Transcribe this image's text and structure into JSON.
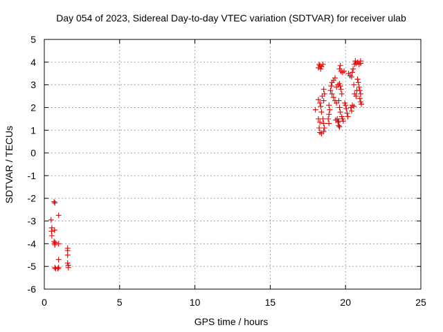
{
  "chart_data": {
    "type": "scatter",
    "title": "Day 054 of 2023, Sidereal Day-to-day VTEC variation (SDTVAR) for receiver ulab",
    "xlabel": "GPS time / hours",
    "ylabel": "SDTVAR / TECUs",
    "xlim": [
      0,
      25
    ],
    "ylim": [
      -6,
      5
    ],
    "xticks": [
      "0",
      "5",
      "10",
      "15",
      "20",
      "25"
    ],
    "yticks": [
      "-6",
      "-5",
      "-4",
      "-3",
      "-2",
      "-1",
      "0",
      "1",
      "2",
      "3",
      "4",
      "5"
    ],
    "grid": true,
    "marker": "+",
    "color": "#e00000",
    "series": [
      {
        "name": "",
        "points": [
          [
            0.45,
            -2.95
          ],
          [
            0.5,
            -3.3
          ],
          [
            0.48,
            -3.45
          ],
          [
            0.5,
            -3.65
          ],
          [
            0.65,
            -2.15
          ],
          [
            0.7,
            -2.2
          ],
          [
            0.68,
            -3.4
          ],
          [
            0.65,
            -3.9
          ],
          [
            0.7,
            -4.0
          ],
          [
            0.7,
            -4.05
          ],
          [
            0.72,
            -3.95
          ],
          [
            0.7,
            -5.05
          ],
          [
            0.75,
            -5.1
          ],
          [
            0.9,
            -5.1
          ],
          [
            0.95,
            -5.05
          ],
          [
            0.95,
            -2.75
          ],
          [
            0.95,
            -4.0
          ],
          [
            0.95,
            -4.7
          ],
          [
            1.55,
            -4.2
          ],
          [
            1.55,
            -4.3
          ],
          [
            1.55,
            -4.5
          ],
          [
            1.55,
            -4.85
          ],
          [
            1.6,
            -4.95
          ],
          [
            1.6,
            -5.05
          ],
          [
            18.0,
            1.9
          ],
          [
            18.2,
            3.75
          ],
          [
            18.3,
            3.85
          ],
          [
            18.4,
            3.8
          ],
          [
            18.5,
            3.9
          ],
          [
            18.35,
            3.7
          ],
          [
            18.25,
            3.9
          ],
          [
            18.2,
            2.35
          ],
          [
            18.3,
            2.2
          ],
          [
            18.35,
            2.05
          ],
          [
            18.4,
            1.8
          ],
          [
            18.2,
            1.5
          ],
          [
            18.3,
            1.35
          ],
          [
            18.25,
            1.1
          ],
          [
            18.3,
            0.9
          ],
          [
            18.4,
            0.85
          ],
          [
            18.45,
            2.5
          ],
          [
            18.55,
            2.8
          ],
          [
            18.6,
            2.6
          ],
          [
            18.55,
            2.3
          ],
          [
            18.5,
            1.5
          ],
          [
            18.55,
            1.3
          ],
          [
            18.6,
            1.1
          ],
          [
            18.55,
            0.95
          ],
          [
            18.9,
            2.1
          ],
          [
            18.95,
            1.9
          ],
          [
            18.9,
            1.7
          ],
          [
            18.85,
            1.5
          ],
          [
            18.9,
            1.3
          ],
          [
            19.0,
            2.75
          ],
          [
            19.05,
            2.95
          ],
          [
            19.1,
            3.1
          ],
          [
            19.2,
            3.2
          ],
          [
            19.3,
            3.3
          ],
          [
            19.1,
            2.6
          ],
          [
            19.2,
            2.45
          ],
          [
            19.3,
            2.3
          ],
          [
            19.4,
            2.2
          ],
          [
            19.35,
            1.45
          ],
          [
            19.45,
            1.5
          ],
          [
            19.5,
            1.35
          ],
          [
            19.55,
            1.2
          ],
          [
            19.6,
            1.15
          ],
          [
            19.55,
            1.4
          ],
          [
            19.4,
            2.9
          ],
          [
            19.5,
            3.0
          ],
          [
            19.6,
            3.05
          ],
          [
            19.65,
            2.95
          ],
          [
            19.7,
            2.8
          ],
          [
            19.75,
            2.6
          ],
          [
            19.55,
            2.3
          ],
          [
            19.6,
            2.0
          ],
          [
            19.65,
            1.8
          ],
          [
            19.75,
            1.6
          ],
          [
            19.85,
            1.4
          ],
          [
            19.8,
            1.5
          ],
          [
            19.6,
            3.7
          ],
          [
            19.65,
            3.85
          ],
          [
            19.7,
            3.6
          ],
          [
            19.8,
            3.55
          ],
          [
            19.9,
            3.6
          ],
          [
            19.95,
            2.2
          ],
          [
            20.0,
            2.1
          ],
          [
            20.05,
            1.95
          ],
          [
            20.1,
            1.75
          ],
          [
            20.15,
            1.6
          ],
          [
            20.2,
            3.5
          ],
          [
            20.3,
            3.4
          ],
          [
            20.4,
            3.35
          ],
          [
            20.45,
            3.55
          ],
          [
            20.5,
            3.7
          ],
          [
            20.35,
            2.0
          ],
          [
            20.4,
            1.85
          ],
          [
            20.45,
            2.1
          ],
          [
            20.55,
            2.05
          ],
          [
            20.6,
            3.9
          ],
          [
            20.65,
            4.05
          ],
          [
            20.7,
            3.95
          ],
          [
            20.8,
            4.0
          ],
          [
            20.9,
            3.9
          ],
          [
            21.0,
            4.05
          ],
          [
            21.0,
            3.95
          ],
          [
            20.55,
            3.0
          ],
          [
            20.6,
            2.6
          ],
          [
            20.7,
            2.5
          ],
          [
            20.75,
            2.75
          ],
          [
            20.9,
            2.9
          ],
          [
            20.95,
            2.75
          ],
          [
            21.0,
            2.6
          ],
          [
            20.95,
            2.4
          ],
          [
            21.0,
            2.25
          ],
          [
            21.05,
            2.15
          ],
          [
            20.85,
            3.1
          ],
          [
            20.8,
            3.25
          ]
        ]
      }
    ]
  }
}
